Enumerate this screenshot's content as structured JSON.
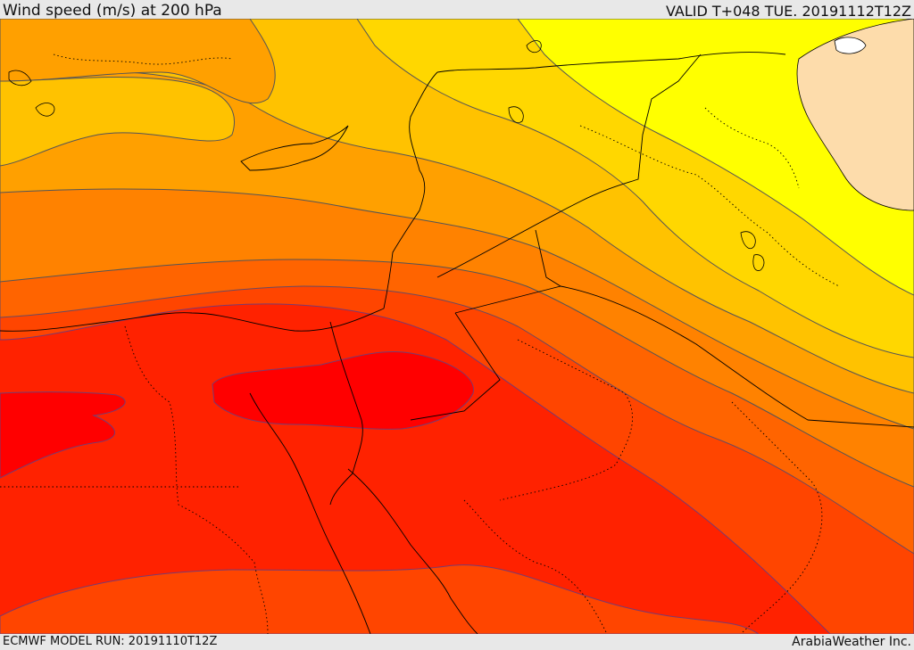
{
  "header": {
    "title": "Wind speed (m/s) at 200 hPa",
    "valid": "VALID T+048 TUE. 20191112T12Z"
  },
  "footer": {
    "model_run": "ECMWF MODEL RUN: 20191110T12Z",
    "credit": "ArabiaWeather Inc."
  },
  "map": {
    "variable": "wind-speed-200hpa",
    "colors": {
      "yellow": "#ffff00",
      "light_yellow_orange": "#ffd700",
      "light_orange": "#ffc200",
      "orange": "#ffa000",
      "dark_orange": "#ff8200",
      "orange_red": "#ff6400",
      "red_orange": "#ff4500",
      "red": "#ff2200",
      "deep_red": "#ff0000",
      "land_tan": "#fddcab",
      "contour": "#555555",
      "border": "#000000"
    }
  }
}
